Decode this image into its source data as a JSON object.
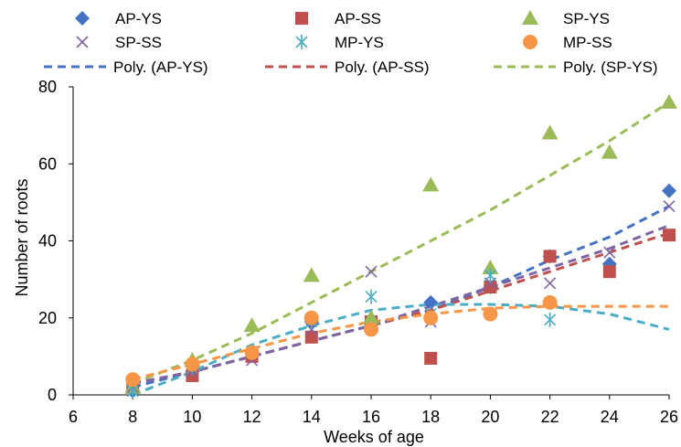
{
  "chart_data": {
    "type": "scatter",
    "xlabel": "Weeks of age",
    "ylabel": "Number of roots",
    "xlim": [
      6,
      26
    ],
    "ylim": [
      0,
      80
    ],
    "xticks": [
      6,
      8,
      10,
      12,
      14,
      16,
      18,
      20,
      22,
      24,
      26
    ],
    "yticks": [
      0,
      20,
      40,
      60,
      80
    ],
    "grid": false,
    "legend_position": "top",
    "series": [
      {
        "name": "AP-YS",
        "marker": "diamond",
        "color": "#4472C4",
        "x": [
          8,
          10,
          12,
          14,
          16,
          18,
          20,
          22,
          24,
          26
        ],
        "y": [
          1,
          6,
          11,
          19,
          19,
          24,
          28,
          36,
          34,
          53
        ]
      },
      {
        "name": "AP-SS",
        "marker": "square",
        "color": "#C0504D",
        "x": [
          8,
          10,
          12,
          14,
          16,
          18,
          20,
          22,
          24,
          26
        ],
        "y": [
          2,
          5,
          10,
          15,
          19,
          9.5,
          28,
          36,
          32,
          41.5
        ]
      },
      {
        "name": "SP-YS",
        "marker": "triangle",
        "color": "#9BBB59",
        "x": [
          8,
          10,
          12,
          14,
          16,
          18,
          20,
          22,
          24,
          26
        ],
        "y": [
          2,
          9,
          18,
          31,
          20,
          54.5,
          33,
          68,
          63,
          76
        ]
      },
      {
        "name": "SP-SS",
        "marker": "x",
        "color": "#8064A2",
        "x": [
          8,
          10,
          12,
          14,
          16,
          18,
          20,
          22,
          24,
          26
        ],
        "y": [
          2,
          6,
          9,
          17,
          32,
          19,
          29,
          29,
          37,
          49
        ]
      },
      {
        "name": "MP-YS",
        "marker": "asterisk",
        "color": "#4BACC6",
        "x": [
          8,
          10,
          12,
          14,
          16,
          18,
          20,
          22
        ],
        "y": [
          1,
          7,
          11,
          19,
          25.5,
          21,
          31,
          19.5
        ]
      },
      {
        "name": "MP-SS",
        "marker": "circle",
        "color": "#F79646",
        "x": [
          8,
          10,
          12,
          14,
          16,
          18,
          20,
          22
        ],
        "y": [
          4,
          8,
          11,
          20,
          17,
          20,
          21,
          24
        ]
      }
    ],
    "trendlines": [
      {
        "name": "Poly. (AP-YS)",
        "color": "#4472C4",
        "x": [
          8,
          10,
          12,
          14,
          16,
          18,
          20,
          22,
          24,
          26
        ],
        "y": [
          2,
          6,
          10,
          14,
          18,
          22,
          28,
          35,
          41,
          49
        ]
      },
      {
        "name": "Poly. (AP-SS)",
        "color": "#C0504D",
        "x": [
          8,
          10,
          12,
          14,
          16,
          18,
          20,
          22,
          24,
          26
        ],
        "y": [
          3,
          6,
          10,
          14,
          18,
          22,
          27,
          32,
          37,
          42
        ]
      },
      {
        "name": "Poly. (SP-YS)",
        "color": "#9BBB59",
        "x": [
          8,
          10,
          12,
          14,
          16,
          18,
          20,
          22,
          24,
          26
        ],
        "y": [
          3,
          9,
          16,
          24,
          32,
          40,
          48,
          57,
          66,
          76
        ]
      },
      {
        "name": "",
        "color": "#8064A2",
        "x": [
          8,
          10,
          12,
          14,
          16,
          18,
          20,
          22,
          24,
          26
        ],
        "y": [
          3,
          6,
          10,
          14,
          18,
          23,
          28,
          33,
          38,
          44
        ]
      },
      {
        "name": "",
        "color": "#4BACC6",
        "x": [
          8,
          10,
          12,
          14,
          16,
          18,
          20,
          22,
          24,
          26
        ],
        "y": [
          0,
          6,
          13,
          18,
          22,
          23.5,
          23.5,
          23,
          21,
          17
        ]
      },
      {
        "name": "",
        "color": "#F79646",
        "x": [
          8,
          10,
          12,
          14,
          16,
          18,
          20,
          22,
          24,
          26
        ],
        "y": [
          4,
          8,
          12,
          16,
          19,
          21,
          22.5,
          23,
          23,
          23
        ]
      }
    ]
  }
}
